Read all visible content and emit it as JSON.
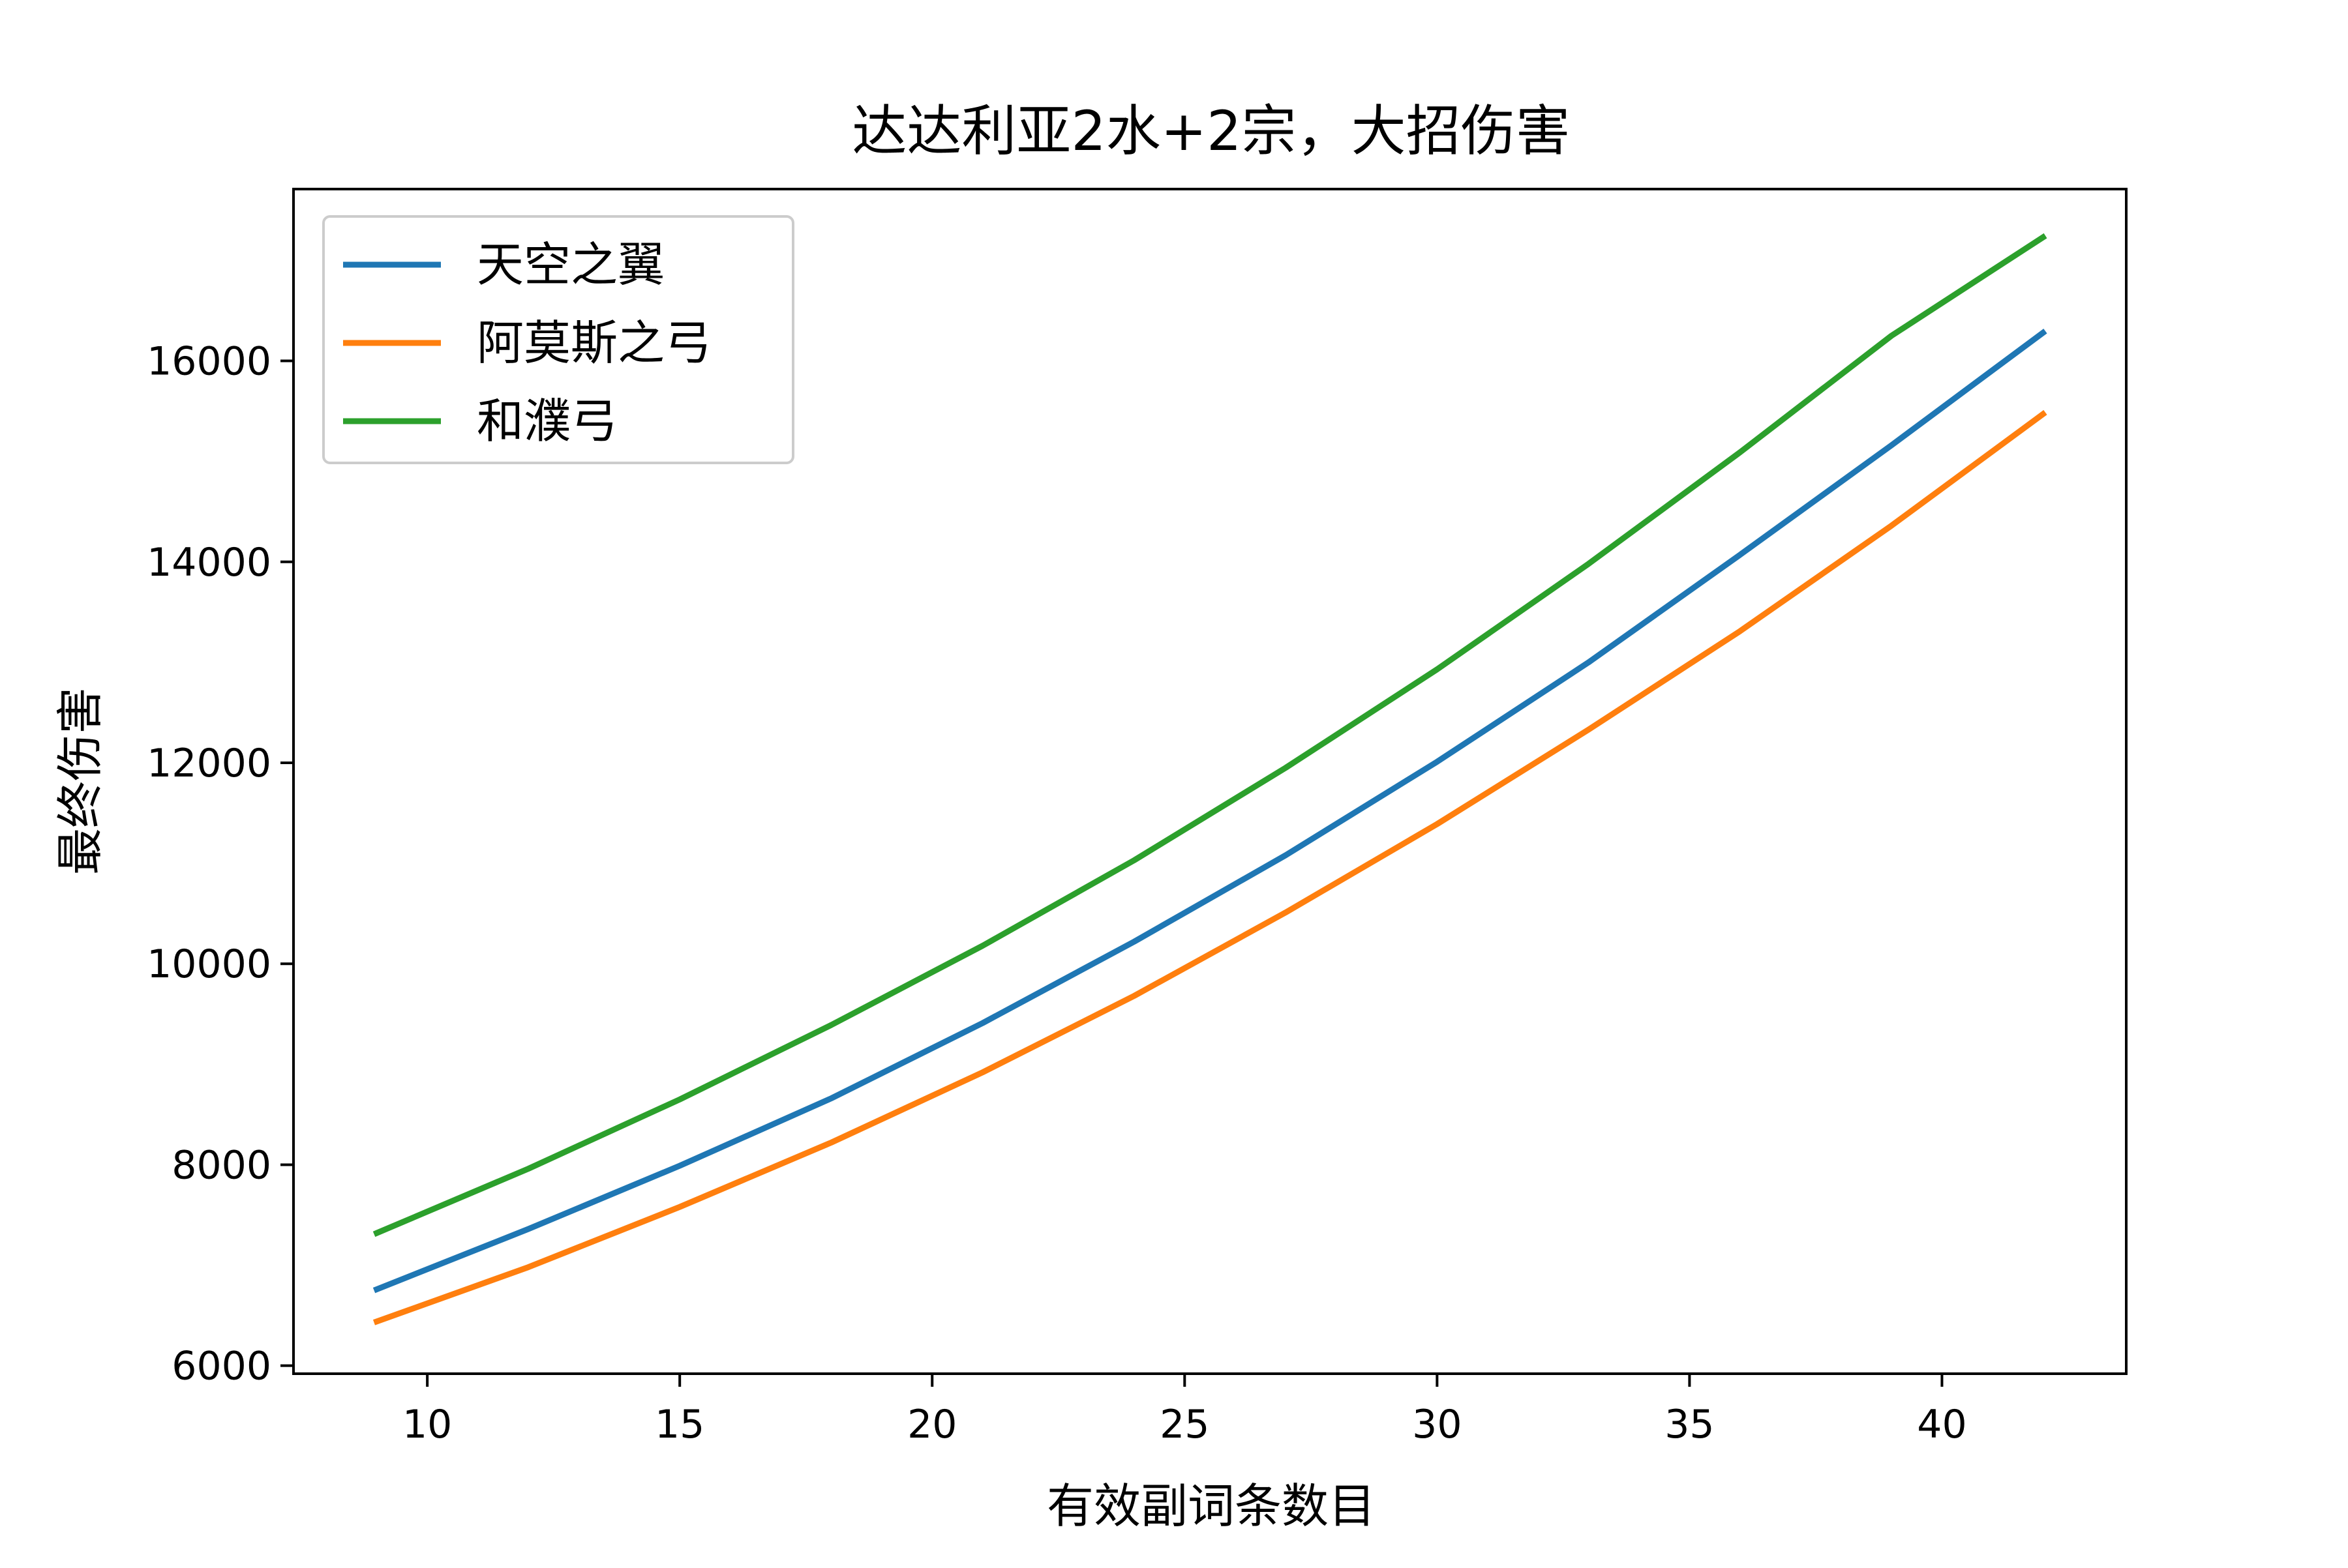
{
  "chart_data": {
    "type": "line",
    "title": "达达利亚2水+2宗，大招伤害",
    "xlabel": "有效副词条数目",
    "ylabel": "最终伤害",
    "xlim": [
      7.35,
      43.65
    ],
    "ylim": [
      5920,
      17710
    ],
    "xticks": [
      10,
      15,
      20,
      25,
      30,
      35,
      40
    ],
    "yticks": [
      6000,
      8000,
      10000,
      12000,
      14000,
      16000
    ],
    "grid": false,
    "legend_position": "top-left",
    "x": [
      9,
      12,
      15,
      18,
      21,
      24,
      27,
      30,
      33,
      36,
      39,
      42
    ],
    "series": [
      {
        "name": "天空之翼",
        "color": "#1f77b4",
        "values": [
          6760,
          7360,
          7990,
          8660,
          9410,
          10220,
          11080,
          12010,
          13000,
          14070,
          15160,
          16280
        ]
      },
      {
        "name": "阿莫斯之弓",
        "color": "#ff7f0e",
        "values": [
          6440,
          6980,
          7580,
          8220,
          8920,
          9680,
          10510,
          11390,
          12330,
          13310,
          14360,
          15470
        ]
      },
      {
        "name": "和濮弓",
        "color": "#2ca02c",
        "values": [
          7320,
          7960,
          8650,
          9390,
          10180,
          11030,
          11950,
          12930,
          13980,
          15090,
          16250,
          17230
        ]
      }
    ]
  }
}
